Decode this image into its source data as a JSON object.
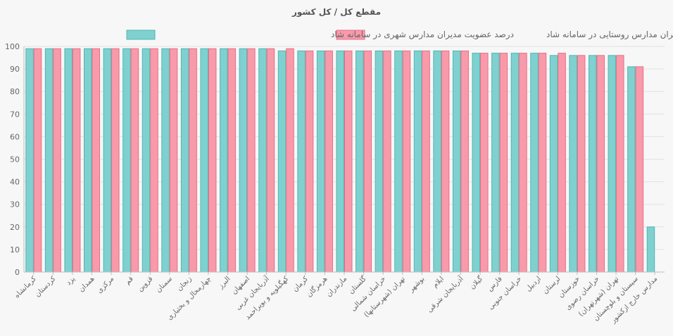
{
  "colors": {
    "background": "#f7f7f7",
    "urban_fill": "#7fd1cf",
    "urban_stroke": "#4fb6b3",
    "rural_fill": "#f99aaa",
    "rural_stroke": "#e56f86",
    "grid": "#e2e2e2",
    "axis": "#bdbdbd"
  },
  "chart_data": {
    "type": "bar",
    "title": "مقطع کل / کل کشور",
    "xlabel": "",
    "ylabel": "",
    "ylim": [
      0,
      100
    ],
    "yticks": [
      0,
      10,
      20,
      30,
      40,
      50,
      60,
      70,
      80,
      90,
      100
    ],
    "grid": true,
    "legend_position": "top",
    "categories": [
      "کرمانشاه",
      "کردستان",
      "یزد",
      "همدان",
      "مرکزی",
      "قم",
      "قزوین",
      "سمنان",
      "زنجان",
      "چهارمحال و بختیاری",
      "البرز",
      "اصفهان",
      "آذربایجان غربی",
      "کهگیلویه و بویراحمد",
      "کرمان",
      "هرمزگان",
      "مازندران",
      "گلستان",
      "خراسان شمالی",
      "تهران (شهرستانها)",
      "بوشهر",
      "ایلام",
      "آذربایجان شرقی",
      "گیلان",
      "فارس",
      "خراسان جنوبی",
      "اردبیل",
      "لرستان",
      "خوزستان",
      "خراسان رضوی",
      "تهران (شهرتهران)",
      "سیستان و بلوچستان",
      "مدارس خارج ازکشور"
    ],
    "series": [
      {
        "name": "درصد عضویت مدیران مدارس شهری در سامانه شاد",
        "values": [
          99,
          99,
          99,
          99,
          99,
          99,
          99,
          99,
          99,
          99,
          99,
          99,
          99,
          98,
          98,
          98,
          98,
          98,
          98,
          98,
          98,
          98,
          98,
          97,
          97,
          97,
          97,
          96,
          96,
          96,
          96,
          91,
          20
        ]
      },
      {
        "name": "درصد عضویت مدیران مدارس روستایی در سامانه شاد",
        "values": [
          99,
          99,
          99,
          99,
          99,
          99,
          99,
          99,
          99,
          99,
          99,
          99,
          99,
          99,
          98,
          98,
          98,
          98,
          98,
          98,
          98,
          98,
          98,
          97,
          97,
          97,
          97,
          97,
          96,
          96,
          96,
          91,
          null
        ]
      }
    ]
  }
}
